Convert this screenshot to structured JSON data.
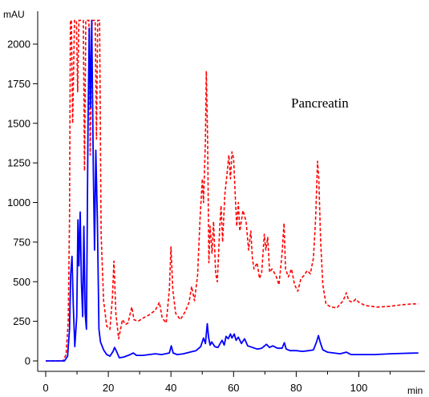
{
  "chart_data": {
    "type": "line",
    "title": "",
    "xlabel": "min",
    "ylabel": "mAU",
    "xlim": [
      0,
      120
    ],
    "ylim": [
      -50,
      2175
    ],
    "x_ticks": [
      0,
      20,
      40,
      60,
      80,
      100
    ],
    "y_ticks": [
      0,
      250,
      500,
      750,
      1000,
      1250,
      1500,
      1750,
      2000
    ],
    "grid": false,
    "annotation": "Pancreatin",
    "series": [
      {
        "color": "#ff0000",
        "style": "dashed",
        "points": [
          [
            0,
            0
          ],
          [
            5.5,
            0
          ],
          [
            6.5,
            40
          ],
          [
            7.2,
            250
          ],
          [
            7.6,
            900
          ],
          [
            7.9,
            2150
          ],
          [
            8.2,
            2150
          ],
          [
            8.6,
            1500
          ],
          [
            9.2,
            2150
          ],
          [
            9.8,
            2150
          ],
          [
            10.2,
            1700
          ],
          [
            10.6,
            2150
          ],
          [
            12,
            2150
          ],
          [
            12.4,
            1200
          ],
          [
            12.8,
            2150
          ],
          [
            13.8,
            2150
          ],
          [
            14.2,
            1300
          ],
          [
            14.8,
            2150
          ],
          [
            15.8,
            2150
          ],
          [
            16.2,
            1400
          ],
          [
            16.6,
            2150
          ],
          [
            17.2,
            2150
          ],
          [
            17.7,
            800
          ],
          [
            18.5,
            380
          ],
          [
            19.5,
            220
          ],
          [
            20.5,
            200
          ],
          [
            21.3,
            400
          ],
          [
            21.8,
            630
          ],
          [
            22.4,
            300
          ],
          [
            23.3,
            140
          ],
          [
            24.5,
            260
          ],
          [
            25.5,
            230
          ],
          [
            26.3,
            240
          ],
          [
            27,
            300
          ],
          [
            27.5,
            340
          ],
          [
            28.2,
            260
          ],
          [
            29.5,
            250
          ],
          [
            31,
            270
          ],
          [
            33,
            290
          ],
          [
            35,
            320
          ],
          [
            36.3,
            370
          ],
          [
            37.2,
            270
          ],
          [
            38.5,
            240
          ],
          [
            39.5,
            450
          ],
          [
            40,
            720
          ],
          [
            40.6,
            450
          ],
          [
            41.5,
            300
          ],
          [
            43,
            260
          ],
          [
            44.5,
            310
          ],
          [
            45.8,
            370
          ],
          [
            46.6,
            470
          ],
          [
            47.5,
            380
          ],
          [
            48.5,
            540
          ],
          [
            49.3,
            900
          ],
          [
            50,
            1150
          ],
          [
            50.4,
            1000
          ],
          [
            51,
            1400
          ],
          [
            51.3,
            1830
          ],
          [
            51.7,
            1400
          ],
          [
            52.1,
            620
          ],
          [
            52.5,
            850
          ],
          [
            53.1,
            680
          ],
          [
            53.6,
            880
          ],
          [
            54.3,
            550
          ],
          [
            54.8,
            500
          ],
          [
            55.6,
            850
          ],
          [
            56,
            980
          ],
          [
            56.5,
            750
          ],
          [
            57.2,
            1050
          ],
          [
            58,
            1200
          ],
          [
            58.5,
            1300
          ],
          [
            59,
            1150
          ],
          [
            59.5,
            1320
          ],
          [
            60,
            1280
          ],
          [
            60.5,
            1050
          ],
          [
            61,
            850
          ],
          [
            61.5,
            1000
          ],
          [
            62,
            820
          ],
          [
            63,
            950
          ],
          [
            64,
            880
          ],
          [
            64.8,
            700
          ],
          [
            65.5,
            820
          ],
          [
            66,
            650
          ],
          [
            66.5,
            580
          ],
          [
            67.5,
            620
          ],
          [
            68.3,
            520
          ],
          [
            69,
            560
          ],
          [
            69.8,
            800
          ],
          [
            70.3,
            700
          ],
          [
            70.9,
            780
          ],
          [
            71.5,
            560
          ],
          [
            72.3,
            580
          ],
          [
            73.5,
            540
          ],
          [
            74.5,
            480
          ],
          [
            75.5,
            680
          ],
          [
            76.1,
            870
          ],
          [
            76.6,
            580
          ],
          [
            77.5,
            530
          ],
          [
            78.5,
            580
          ],
          [
            79.5,
            480
          ],
          [
            80.5,
            440
          ],
          [
            81.5,
            520
          ],
          [
            82.5,
            540
          ],
          [
            83.5,
            570
          ],
          [
            84.5,
            550
          ],
          [
            85.5,
            650
          ],
          [
            86.2,
            900
          ],
          [
            86.8,
            1260
          ],
          [
            87.2,
            1160
          ],
          [
            87.8,
            750
          ],
          [
            88.5,
            480
          ],
          [
            89.5,
            360
          ],
          [
            91,
            340
          ],
          [
            93,
            335
          ],
          [
            95,
            380
          ],
          [
            96,
            430
          ],
          [
            96.8,
            380
          ],
          [
            98,
            370
          ],
          [
            99,
            390
          ],
          [
            100,
            370
          ],
          [
            102,
            350
          ],
          [
            106,
            340
          ],
          [
            110,
            345
          ],
          [
            114,
            355
          ],
          [
            117,
            360
          ],
          [
            119,
            360
          ]
        ]
      },
      {
        "color": "#0000ff",
        "style": "solid",
        "points": [
          [
            0,
            0
          ],
          [
            6,
            0
          ],
          [
            7,
            30
          ],
          [
            7.6,
            200
          ],
          [
            8,
            550
          ],
          [
            8.4,
            660
          ],
          [
            8.8,
            350
          ],
          [
            9.3,
            90
          ],
          [
            9.9,
            280
          ],
          [
            10.3,
            890
          ],
          [
            10.6,
            600
          ],
          [
            11,
            940
          ],
          [
            11.4,
            500
          ],
          [
            11.8,
            280
          ],
          [
            12.2,
            850
          ],
          [
            12.6,
            300
          ],
          [
            13,
            200
          ],
          [
            13.5,
            1450
          ],
          [
            13.9,
            2100
          ],
          [
            14.3,
            1600
          ],
          [
            14.7,
            2150
          ],
          [
            15.2,
            1200
          ],
          [
            15.6,
            700
          ],
          [
            16,
            1330
          ],
          [
            16.5,
            900
          ],
          [
            17,
            200
          ],
          [
            17.5,
            120
          ],
          [
            18.5,
            70
          ],
          [
            19.5,
            40
          ],
          [
            20.5,
            30
          ],
          [
            21.5,
            60
          ],
          [
            22,
            85
          ],
          [
            22.6,
            60
          ],
          [
            23.5,
            20
          ],
          [
            25,
            25
          ],
          [
            27,
            40
          ],
          [
            28,
            50
          ],
          [
            29,
            35
          ],
          [
            31,
            35
          ],
          [
            33,
            40
          ],
          [
            35,
            45
          ],
          [
            37,
            40
          ],
          [
            39.5,
            50
          ],
          [
            40.1,
            95
          ],
          [
            40.7,
            50
          ],
          [
            42,
            40
          ],
          [
            44,
            45
          ],
          [
            46,
            55
          ],
          [
            48,
            65
          ],
          [
            49.5,
            90
          ],
          [
            50.4,
            145
          ],
          [
            51,
            110
          ],
          [
            51.6,
            235
          ],
          [
            52,
            150
          ],
          [
            52.5,
            100
          ],
          [
            53,
            120
          ],
          [
            54,
            90
          ],
          [
            55,
            85
          ],
          [
            56.3,
            130
          ],
          [
            57,
            100
          ],
          [
            57.6,
            155
          ],
          [
            58.3,
            140
          ],
          [
            59,
            170
          ],
          [
            59.5,
            145
          ],
          [
            60.2,
            170
          ],
          [
            60.8,
            130
          ],
          [
            61.5,
            150
          ],
          [
            62.5,
            110
          ],
          [
            63.5,
            140
          ],
          [
            64.5,
            95
          ],
          [
            66,
            85
          ],
          [
            67.5,
            75
          ],
          [
            69,
            80
          ],
          [
            70.5,
            105
          ],
          [
            71.5,
            85
          ],
          [
            72.5,
            95
          ],
          [
            74,
            80
          ],
          [
            75.5,
            80
          ],
          [
            76.2,
            115
          ],
          [
            76.8,
            75
          ],
          [
            78,
            65
          ],
          [
            80,
            65
          ],
          [
            82,
            60
          ],
          [
            84,
            65
          ],
          [
            85.5,
            70
          ],
          [
            86.5,
            120
          ],
          [
            87.1,
            160
          ],
          [
            87.7,
            115
          ],
          [
            88.5,
            70
          ],
          [
            90,
            55
          ],
          [
            92,
            50
          ],
          [
            94,
            45
          ],
          [
            96,
            55
          ],
          [
            97.5,
            40
          ],
          [
            100,
            40
          ],
          [
            105,
            40
          ],
          [
            110,
            45
          ],
          [
            115,
            48
          ],
          [
            119,
            50
          ]
        ]
      }
    ]
  }
}
